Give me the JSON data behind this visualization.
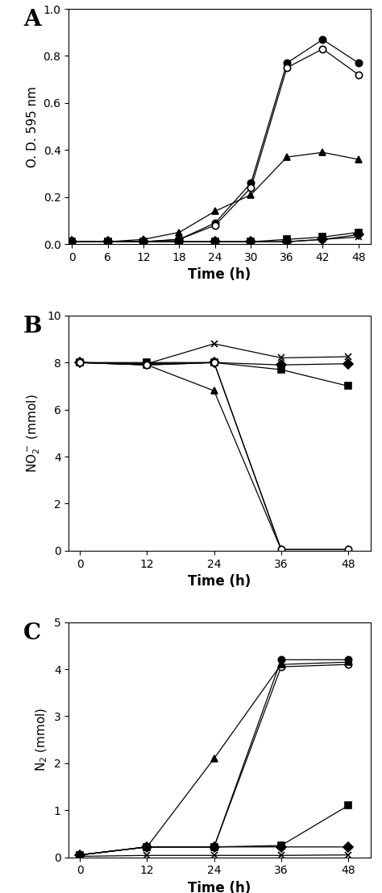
{
  "panel_A": {
    "time": [
      0,
      6,
      12,
      18,
      24,
      30,
      36,
      42,
      48
    ],
    "series": [
      {
        "label": "filled_circle",
        "marker": "o",
        "filled": true,
        "values": [
          0.01,
          0.01,
          0.01,
          0.02,
          0.09,
          0.26,
          0.77,
          0.87,
          0.77
        ]
      },
      {
        "label": "open_circle",
        "marker": "o",
        "filled": false,
        "values": [
          0.01,
          0.01,
          0.01,
          0.02,
          0.08,
          0.24,
          0.75,
          0.83,
          0.72
        ]
      },
      {
        "label": "filled_tri",
        "marker": "^",
        "filled": true,
        "values": [
          0.01,
          0.01,
          0.02,
          0.05,
          0.14,
          0.21,
          0.37,
          0.39,
          0.36
        ]
      },
      {
        "label": "filled_square",
        "marker": "s",
        "filled": true,
        "values": [
          0.01,
          0.01,
          0.01,
          0.01,
          0.01,
          0.01,
          0.02,
          0.03,
          0.05
        ]
      },
      {
        "label": "filled_diamond",
        "marker": "D",
        "filled": true,
        "values": [
          0.01,
          0.01,
          0.01,
          0.01,
          0.01,
          0.01,
          0.01,
          0.02,
          0.04
        ]
      },
      {
        "label": "x_marker",
        "marker": "x",
        "filled": false,
        "values": [
          0.01,
          0.01,
          0.01,
          0.01,
          0.01,
          0.01,
          0.01,
          0.02,
          0.03
        ]
      }
    ],
    "ylabel": "O. D. 595 nm",
    "xlabel": "Time (h)",
    "ylim": [
      0.0,
      1.0
    ],
    "yticks": [
      0.0,
      0.2,
      0.4,
      0.6,
      0.8,
      1.0
    ],
    "xticks": [
      0,
      6,
      12,
      18,
      24,
      30,
      36,
      42,
      48
    ]
  },
  "panel_B": {
    "time": [
      0,
      12,
      24,
      36,
      48
    ],
    "series": [
      {
        "label": "filled_square",
        "marker": "s",
        "filled": true,
        "values": [
          8.0,
          8.0,
          8.0,
          7.7,
          7.0
        ]
      },
      {
        "label": "x_marker",
        "marker": "x",
        "filled": false,
        "values": [
          8.0,
          7.95,
          8.8,
          8.2,
          8.25
        ]
      },
      {
        "label": "filled_diamond",
        "marker": "D",
        "filled": true,
        "values": [
          8.0,
          7.95,
          8.0,
          7.9,
          7.95
        ]
      },
      {
        "label": "filled_tri",
        "marker": "^",
        "filled": true,
        "values": [
          8.0,
          7.9,
          6.8,
          0.05,
          0.05
        ]
      },
      {
        "label": "open_tri",
        "marker": "^",
        "filled": false,
        "values": [
          8.0,
          7.9,
          8.0,
          0.05,
          0.05
        ]
      },
      {
        "label": "open_circle",
        "marker": "o",
        "filled": false,
        "values": [
          8.0,
          7.9,
          8.0,
          0.05,
          0.05
        ]
      }
    ],
    "ylabel": "NO$_2^-$ (mmol)",
    "xlabel": "Time (h)",
    "ylim": [
      0,
      10
    ],
    "yticks": [
      0,
      2,
      4,
      6,
      8,
      10
    ],
    "xticks": [
      0,
      12,
      24,
      36,
      48
    ]
  },
  "panel_C": {
    "time": [
      0,
      12,
      24,
      36,
      48
    ],
    "series": [
      {
        "label": "filled_circle",
        "marker": "o",
        "filled": true,
        "values": [
          0.05,
          0.22,
          0.22,
          4.2,
          4.2
        ]
      },
      {
        "label": "open_circle",
        "marker": "o",
        "filled": false,
        "values": [
          0.05,
          0.22,
          0.22,
          4.05,
          4.1
        ]
      },
      {
        "label": "filled_tri",
        "marker": "^",
        "filled": true,
        "values": [
          0.05,
          0.22,
          2.1,
          4.1,
          4.15
        ]
      },
      {
        "label": "filled_square",
        "marker": "s",
        "filled": true,
        "values": [
          0.05,
          0.22,
          0.22,
          0.25,
          1.1
        ]
      },
      {
        "label": "filled_diamond",
        "marker": "D",
        "filled": true,
        "values": [
          0.05,
          0.22,
          0.22,
          0.22,
          0.22
        ]
      },
      {
        "label": "x_marker",
        "marker": "x",
        "filled": false,
        "values": [
          0.02,
          0.04,
          0.04,
          0.04,
          0.05
        ]
      }
    ],
    "ylabel": "N$_2$ (mmol)",
    "xlabel": "Time (h)",
    "ylim": [
      0,
      5
    ],
    "yticks": [
      0,
      1,
      2,
      3,
      4,
      5
    ],
    "xticks": [
      0,
      12,
      24,
      36,
      48
    ]
  },
  "panel_labels": [
    "A",
    "B",
    "C"
  ],
  "line_color": "#000000",
  "markersize": 6,
  "linewidth": 0.9,
  "figsize": [
    4.74,
    11.09
  ],
  "dpi": 100
}
